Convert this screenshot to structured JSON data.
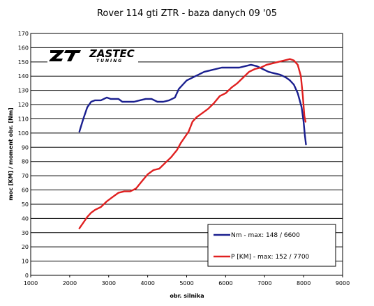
{
  "chart_data": {
    "type": "line",
    "title": "Rover 114 gti ZTR - baza danych 09 '05",
    "xlabel": "obr. silnika",
    "ylabel": "moc [KM] / moment obr. [Nm]",
    "xlim": [
      1000,
      9000
    ],
    "ylim": [
      0,
      170
    ],
    "x_ticks": [
      "1000",
      "2000",
      "3000",
      "4000",
      "5000",
      "6000",
      "7000",
      "8000",
      "9000"
    ],
    "y_ticks": [
      "0",
      "10",
      "20",
      "30",
      "40",
      "50",
      "60",
      "70",
      "80",
      "90",
      "100",
      "110",
      "120",
      "130",
      "140",
      "150",
      "160",
      "170"
    ],
    "grid": "horizontal",
    "legend_position": "bottom-right",
    "logo": {
      "main": "ZASTEC",
      "sub": "TUNING"
    },
    "series": [
      {
        "name": "Nm - max: 148 / 6600",
        "color": "#1a1f8f",
        "points": [
          [
            2250,
            101
          ],
          [
            2350,
            110
          ],
          [
            2450,
            118
          ],
          [
            2550,
            122
          ],
          [
            2650,
            123
          ],
          [
            2800,
            123
          ],
          [
            2950,
            125
          ],
          [
            3050,
            124
          ],
          [
            3150,
            124
          ],
          [
            3250,
            124
          ],
          [
            3350,
            122
          ],
          [
            3500,
            122
          ],
          [
            3650,
            122
          ],
          [
            3800,
            123
          ],
          [
            3950,
            124
          ],
          [
            4100,
            124
          ],
          [
            4250,
            122
          ],
          [
            4400,
            122
          ],
          [
            4550,
            123
          ],
          [
            4700,
            125
          ],
          [
            4800,
            131
          ],
          [
            4900,
            134
          ],
          [
            5000,
            137
          ],
          [
            5150,
            139
          ],
          [
            5300,
            141
          ],
          [
            5450,
            143
          ],
          [
            5600,
            144
          ],
          [
            5750,
            145
          ],
          [
            5900,
            146
          ],
          [
            6050,
            146
          ],
          [
            6200,
            146
          ],
          [
            6350,
            146
          ],
          [
            6500,
            147
          ],
          [
            6650,
            148
          ],
          [
            6800,
            147
          ],
          [
            6950,
            145
          ],
          [
            7100,
            143
          ],
          [
            7250,
            142
          ],
          [
            7400,
            141
          ],
          [
            7550,
            139
          ],
          [
            7650,
            137
          ],
          [
            7750,
            134
          ],
          [
            7850,
            128
          ],
          [
            7950,
            118
          ],
          [
            8000,
            108
          ],
          [
            8030,
            99
          ],
          [
            8060,
            92
          ]
        ]
      },
      {
        "name": "P [KM] - max: 152 / 7700",
        "color": "#e02020",
        "points": [
          [
            2250,
            33
          ],
          [
            2350,
            37
          ],
          [
            2450,
            41
          ],
          [
            2550,
            44
          ],
          [
            2650,
            46
          ],
          [
            2800,
            48
          ],
          [
            2950,
            52
          ],
          [
            3100,
            55
          ],
          [
            3250,
            58
          ],
          [
            3400,
            59
          ],
          [
            3550,
            59
          ],
          [
            3700,
            61
          ],
          [
            3850,
            66
          ],
          [
            4000,
            71
          ],
          [
            4150,
            74
          ],
          [
            4300,
            75
          ],
          [
            4450,
            79
          ],
          [
            4600,
            83
          ],
          [
            4750,
            88
          ],
          [
            4850,
            93
          ],
          [
            4950,
            97
          ],
          [
            5050,
            101
          ],
          [
            5150,
            108
          ],
          [
            5250,
            111
          ],
          [
            5350,
            113
          ],
          [
            5450,
            115
          ],
          [
            5550,
            117
          ],
          [
            5700,
            121
          ],
          [
            5850,
            126
          ],
          [
            6000,
            128
          ],
          [
            6150,
            132
          ],
          [
            6300,
            135
          ],
          [
            6450,
            139
          ],
          [
            6600,
            143
          ],
          [
            6750,
            145
          ],
          [
            6900,
            146
          ],
          [
            7050,
            148
          ],
          [
            7200,
            149
          ],
          [
            7350,
            150
          ],
          [
            7500,
            151
          ],
          [
            7650,
            152
          ],
          [
            7750,
            151
          ],
          [
            7850,
            148
          ],
          [
            7930,
            140
          ],
          [
            7980,
            126
          ],
          [
            8020,
            112
          ],
          [
            8050,
            108
          ]
        ]
      }
    ]
  }
}
